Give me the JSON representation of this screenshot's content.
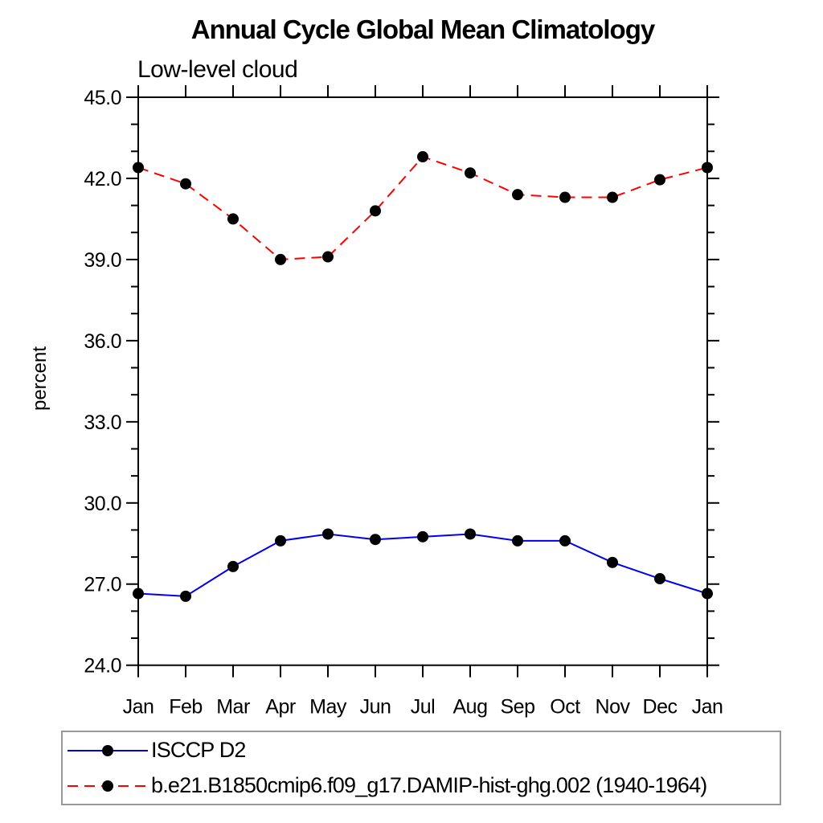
{
  "page": {
    "background": "#ffffff"
  },
  "colors": {
    "axis": "#000000",
    "text": "#000000",
    "legend_border": "#999999",
    "marker": "#000000",
    "series_blue": "#0000ee",
    "series_red": "#ff0000"
  },
  "chart_data": {
    "type": "line",
    "title": "Annual Cycle Global Mean Climatology",
    "subtitle": "Low-level cloud",
    "xlabel": "",
    "ylabel": "percent",
    "ylim": [
      24.0,
      45.0
    ],
    "ytick_major_step": 3.0,
    "ytick_minor_step": 1.0,
    "ytick_labels": [
      "24.0",
      "27.0",
      "30.0",
      "33.0",
      "36.0",
      "39.0",
      "42.0",
      "45.0"
    ],
    "grid": false,
    "legend_position": "bottom",
    "categories": [
      "Jan",
      "Feb",
      "Mar",
      "Apr",
      "May",
      "Jun",
      "Jul",
      "Aug",
      "Sep",
      "Oct",
      "Nov",
      "Dec",
      "Jan"
    ],
    "series": [
      {
        "name": "ISCCP D2",
        "color": "#0000ee",
        "line_style": "solid",
        "marker": "circle",
        "marker_color": "#000000",
        "values": [
          26.65,
          26.55,
          27.65,
          28.6,
          28.85,
          28.65,
          28.75,
          28.85,
          28.6,
          28.6,
          27.8,
          27.2,
          26.65
        ]
      },
      {
        "name": "b.e21.B1850cmip6.f09_g17.DAMIP-hist-ghg.002 (1940-1964)",
        "color": "#ff0000",
        "line_style": "dashed",
        "marker": "circle",
        "marker_color": "#000000",
        "values": [
          42.4,
          41.8,
          40.5,
          39.0,
          39.1,
          40.8,
          42.8,
          42.2,
          41.4,
          41.3,
          41.3,
          41.95,
          42.4
        ]
      }
    ]
  }
}
